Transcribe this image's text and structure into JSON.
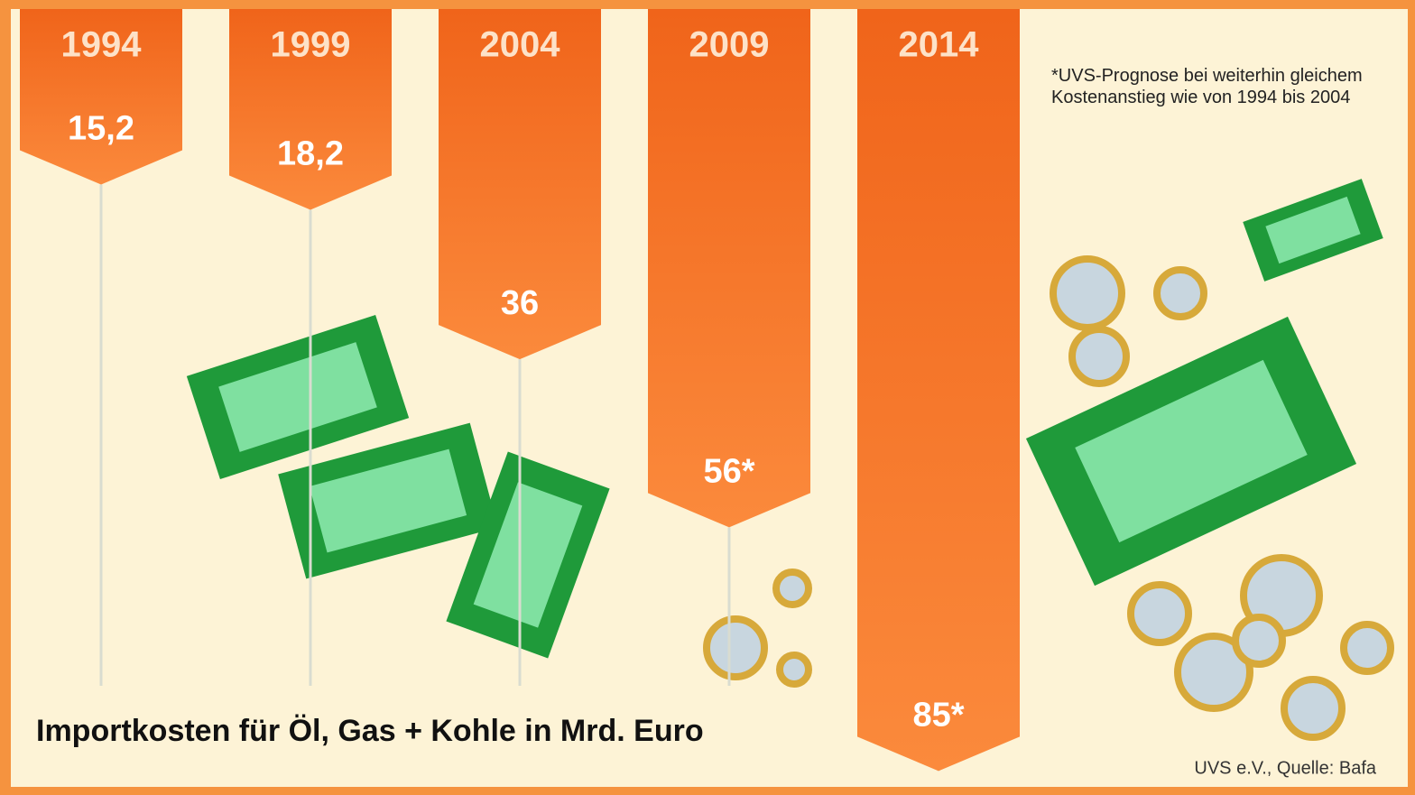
{
  "chart_data": {
    "type": "bar",
    "title": "Importkosten für Öl, Gas + Kohle in Mrd. Euro",
    "note": "*UVS-Prognose bei weiterhin gleichem Kostenanstieg wie von 1994 bis 2004",
    "source": "UVS e.V., Quelle: Bafa",
    "categories": [
      "1994",
      "1999",
      "2004",
      "2009",
      "2014"
    ],
    "values": [
      15.2,
      18.2,
      36,
      56,
      85
    ],
    "value_labels": [
      "15,2",
      "18,2",
      "36",
      "56*",
      "85*"
    ],
    "color": "#f26a1b"
  }
}
